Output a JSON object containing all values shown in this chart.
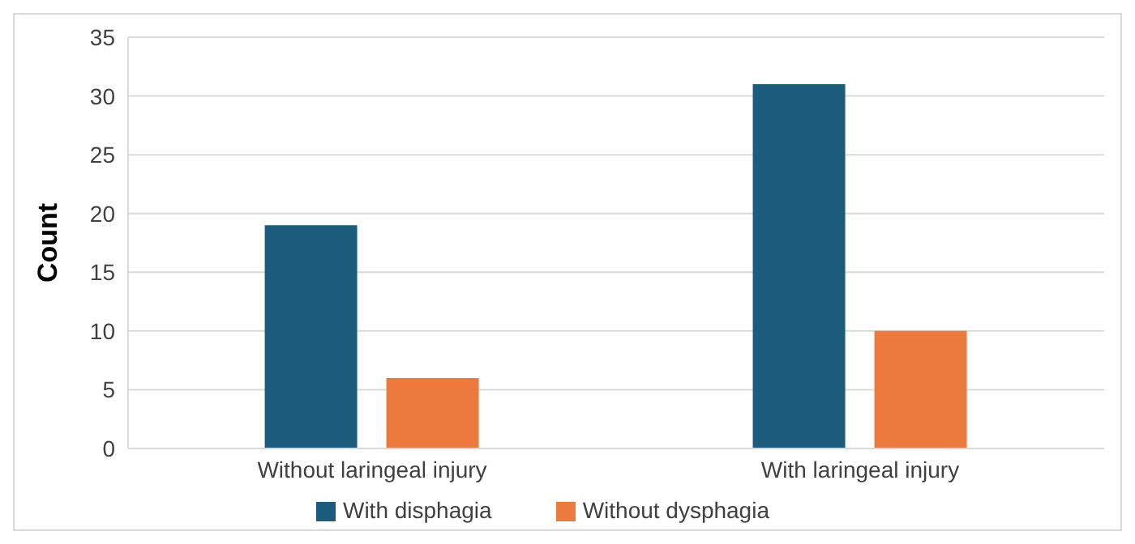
{
  "chart_data": {
    "type": "bar",
    "ylabel": "Count",
    "categories": [
      "Without laringeal injury",
      "With laringeal injury"
    ],
    "series": [
      {
        "name": "With disphagia",
        "color": "#1b5b7c",
        "values": [
          19,
          31
        ]
      },
      {
        "name": "Without dysphagia",
        "color": "#ec7a3c",
        "values": [
          6,
          10
        ]
      }
    ],
    "ylim": [
      0,
      35
    ],
    "yticks": [
      0,
      5,
      10,
      15,
      20,
      25,
      30,
      35
    ],
    "grid": "y",
    "legend": "bottom"
  }
}
